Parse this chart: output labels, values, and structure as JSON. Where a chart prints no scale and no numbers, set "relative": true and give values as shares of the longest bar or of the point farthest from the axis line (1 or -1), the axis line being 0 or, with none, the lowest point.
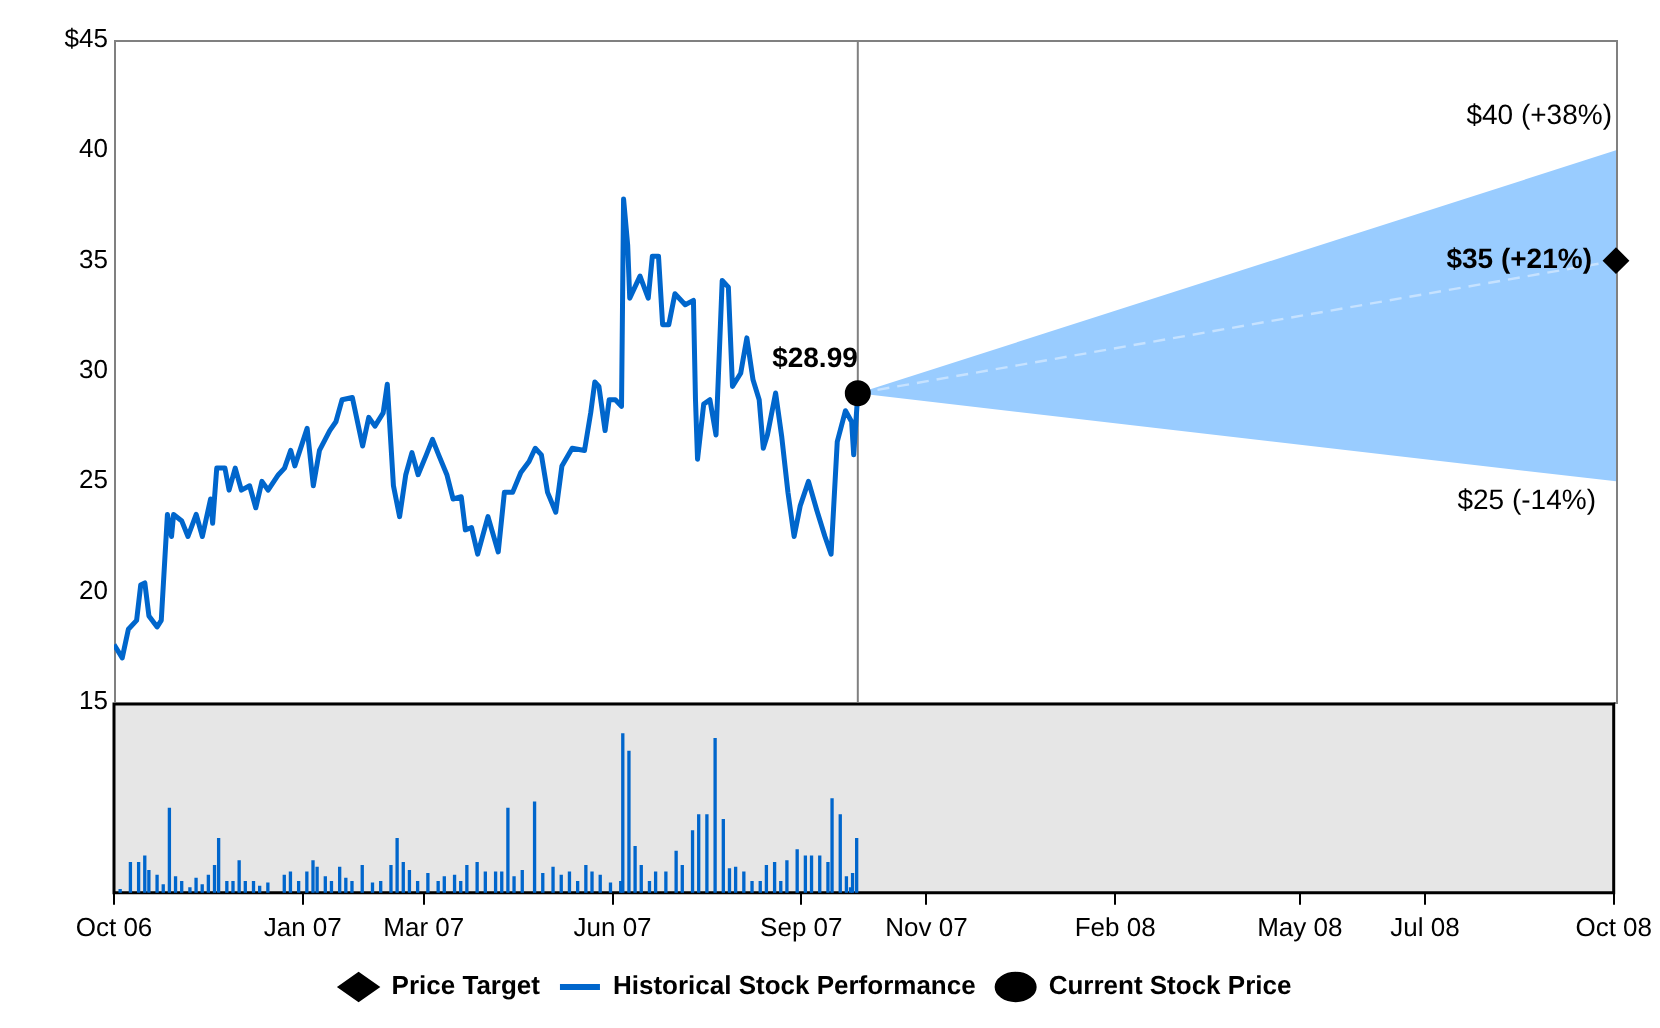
{
  "chart_data": [
    {
      "type": "line",
      "ylim": [
        15,
        45
      ],
      "yticks": [
        15,
        20,
        25,
        30,
        35,
        40,
        {
          "value": 45,
          "label": "$45"
        }
      ],
      "xlim": [
        "2006-10-01",
        "2008-10-01"
      ],
      "tick_labels": "y",
      "grid": false,
      "legend": "bottom",
      "series": [
        {
          "name": "Price Target",
          "type": "scatter",
          "color": "#000000",
          "marker": "diamond",
          "x": [
            "2008-10-01"
          ],
          "values": [
            35
          ]
        },
        {
          "name": "Historical Stock Performance",
          "type": "line",
          "color": "#0066cc",
          "marker": "none",
          "x": [
            "2006-10-01",
            "2006-10-05",
            "2006-10-08",
            "2006-10-12",
            "2006-10-14",
            "2006-10-16",
            "2006-10-18",
            "2006-10-22",
            "2006-10-24",
            "2006-10-27",
            "2006-10-29",
            "2006-10-30",
            "2006-11-03",
            "2006-11-06",
            "2006-11-10",
            "2006-11-13",
            "2006-11-17",
            "2006-11-18",
            "2006-11-20",
            "2006-11-24",
            "2006-11-26",
            "2006-11-29",
            "2006-12-02",
            "2006-12-06",
            "2006-12-09",
            "2006-12-12",
            "2006-12-15",
            "2006-12-20",
            "2006-12-23",
            "2006-12-26",
            "2006-12-28",
            "2007-01-03",
            "2007-01-06",
            "2007-01-09",
            "2007-01-14",
            "2007-01-17",
            "2007-01-20",
            "2007-01-25",
            "2007-01-30",
            "2007-02-02",
            "2007-02-05",
            "2007-02-09",
            "2007-02-11",
            "2007-02-14",
            "2007-02-17",
            "2007-02-20",
            "2007-02-23",
            "2007-02-26",
            "2007-03-02",
            "2007-03-05",
            "2007-03-08",
            "2007-03-12",
            "2007-03-15",
            "2007-03-19",
            "2007-03-21",
            "2007-03-24",
            "2007-03-27",
            "2007-04-01",
            "2007-04-06",
            "2007-04-09",
            "2007-04-13",
            "2007-04-17",
            "2007-04-21",
            "2007-04-24",
            "2007-04-27",
            "2007-04-30",
            "2007-05-04",
            "2007-05-07",
            "2007-05-12",
            "2007-05-18",
            "2007-05-21",
            "2007-05-23",
            "2007-05-25",
            "2007-05-28",
            "2007-05-30",
            "2007-06-02",
            "2007-06-05",
            "2007-06-06",
            "2007-06-08",
            "2007-06-09",
            "2007-06-14",
            "2007-06-18",
            "2007-06-20",
            "2007-06-23",
            "2007-06-25",
            "2007-06-28",
            "2007-07-01",
            "2007-07-06",
            "2007-07-10",
            "2007-07-11",
            "2007-07-12",
            "2007-07-15",
            "2007-07-18",
            "2007-07-21",
            "2007-07-24",
            "2007-07-27",
            "2007-07-29",
            "2007-08-02",
            "2007-08-05",
            "2007-08-08",
            "2007-08-11",
            "2007-08-13",
            "2007-08-15",
            "2007-08-19",
            "2007-08-22",
            "2007-08-25",
            "2007-08-28",
            "2007-08-31",
            "2007-09-04",
            "2007-09-08",
            "2007-09-12",
            "2007-09-15",
            "2007-09-18",
            "2007-09-22",
            "2007-09-25",
            "2007-09-26",
            "2007-09-28"
          ],
          "values": [
            17.6,
            17.0,
            18.3,
            18.7,
            20.3,
            20.4,
            18.9,
            18.4,
            18.7,
            23.5,
            22.5,
            23.5,
            23.2,
            22.5,
            23.5,
            22.5,
            24.2,
            23.1,
            25.6,
            25.6,
            24.6,
            25.6,
            24.6,
            24.8,
            23.8,
            25.0,
            24.6,
            25.3,
            25.6,
            26.4,
            25.7,
            27.4,
            24.8,
            26.4,
            27.3,
            27.7,
            28.7,
            28.8,
            26.6,
            27.9,
            27.5,
            28.1,
            29.4,
            24.8,
            23.4,
            25.3,
            26.3,
            25.3,
            26.2,
            26.9,
            26.2,
            25.3,
            24.2,
            24.3,
            22.8,
            22.9,
            21.7,
            23.4,
            21.8,
            24.5,
            24.5,
            25.4,
            25.9,
            26.5,
            26.2,
            24.5,
            23.6,
            25.7,
            26.5,
            26.4,
            28.1,
            29.5,
            29.3,
            27.3,
            28.7,
            28.7,
            28.4,
            37.8,
            35.7,
            33.3,
            34.3,
            33.3,
            35.2,
            35.2,
            32.1,
            32.1,
            33.5,
            33.0,
            33.2,
            28.7,
            26.0,
            28.5,
            28.7,
            27.1,
            34.1,
            33.8,
            29.3,
            29.9,
            31.5,
            29.6,
            28.7,
            26.5,
            27.1,
            29.0,
            27.0,
            24.5,
            22.5,
            23.9,
            25.0,
            23.7,
            22.5,
            21.7,
            26.8,
            28.2,
            27.7,
            26.2,
            28.99
          ]
        },
        {
          "name": "Current Stock Price",
          "type": "scatter",
          "color": "#000000",
          "marker": "circle",
          "x": [
            "2007-09-28"
          ],
          "values": [
            28.99
          ]
        },
        {
          "type": "line",
          "color": "#c6e2ff",
          "marker": "none",
          "line_style": "dashed",
          "x": [
            "2007-09-28",
            "2008-10-01"
          ],
          "values": [
            28.99,
            35
          ],
          "lower": [
            28.99,
            25
          ],
          "upper": [
            28.99,
            40
          ]
        }
      ],
      "ref_lines": [
        {
          "axis": "x",
          "value": "2007-09-28",
          "color": "#808080"
        }
      ],
      "annotations": [
        {
          "text": "$28.99",
          "x": "2007-09-28",
          "y": 28.99
        },
        {
          "text": "$40 (+38%)",
          "x": "2008-10-01",
          "y": 40
        },
        {
          "text": "$35 (+21%)",
          "x": "2008-10-01",
          "y": 35
        },
        {
          "text": "$25 (-14%)",
          "x": "2008-10-01",
          "y": 25
        }
      ]
    },
    {
      "type": "bar",
      "relative": true,
      "color": "#0066cc",
      "tick_labels": "x",
      "grid": false,
      "xlim": [
        "2006-10-01",
        "2008-10-01"
      ],
      "xticks": [
        {
          "value": "2006-10",
          "label": "Oct 06"
        },
        {
          "value": "2007-01",
          "label": "Jan 07"
        },
        {
          "value": "2007-03",
          "label": "Mar 07"
        },
        {
          "value": "2007-06",
          "label": "Jun 07"
        },
        {
          "value": "2007-09",
          "label": "Sep 07"
        },
        {
          "value": "2007-11",
          "label": "Nov 07"
        },
        {
          "value": "2008-02",
          "label": "Feb 08"
        },
        {
          "value": "2008-05",
          "label": "May 08"
        },
        {
          "value": "2008-07",
          "label": "Jul 08"
        },
        {
          "value": "2008-10",
          "label": "Oct 08"
        }
      ],
      "x": [
        "2006-10-04",
        "2006-10-09",
        "2006-10-13",
        "2006-10-16",
        "2006-10-18",
        "2006-10-22",
        "2006-10-25",
        "2006-10-28",
        "2006-10-31",
        "2006-11-03",
        "2006-11-07",
        "2006-11-10",
        "2006-11-13",
        "2006-11-16",
        "2006-11-19",
        "2006-11-21",
        "2006-11-25",
        "2006-11-28",
        "2006-12-01",
        "2006-12-04",
        "2006-12-08",
        "2006-12-11",
        "2006-12-15",
        "2006-12-23",
        "2006-12-26",
        "2006-12-30",
        "2007-01-03",
        "2007-01-06",
        "2007-01-08",
        "2007-01-12",
        "2007-01-15",
        "2007-01-19",
        "2007-01-22",
        "2007-01-25",
        "2007-01-30",
        "2007-02-04",
        "2007-02-08",
        "2007-02-13",
        "2007-02-16",
        "2007-02-19",
        "2007-02-22",
        "2007-02-26",
        "2007-03-03",
        "2007-03-08",
        "2007-03-11",
        "2007-03-16",
        "2007-03-19",
        "2007-03-22",
        "2007-03-27",
        "2007-03-31",
        "2007-04-05",
        "2007-04-08",
        "2007-04-11",
        "2007-04-14",
        "2007-04-18",
        "2007-04-24",
        "2007-04-28",
        "2007-05-03",
        "2007-05-07",
        "2007-05-11",
        "2007-05-15",
        "2007-05-19",
        "2007-05-22",
        "2007-05-26",
        "2007-05-31",
        "2007-06-05",
        "2007-06-06",
        "2007-06-09",
        "2007-06-12",
        "2007-06-15",
        "2007-06-19",
        "2007-06-22",
        "2007-06-27",
        "2007-07-02",
        "2007-07-05",
        "2007-07-10",
        "2007-07-13",
        "2007-07-17",
        "2007-07-21",
        "2007-07-25",
        "2007-07-28",
        "2007-07-31",
        "2007-08-04",
        "2007-08-08",
        "2007-08-12",
        "2007-08-15",
        "2007-08-19",
        "2007-08-22",
        "2007-08-25",
        "2007-08-30",
        "2007-09-03",
        "2007-09-06",
        "2007-09-10",
        "2007-09-14",
        "2007-09-16",
        "2007-09-20",
        "2007-09-23",
        "2007-09-25",
        "2007-09-26",
        "2007-09-28"
      ],
      "values": [
        0.02,
        0.19,
        0.19,
        0.23,
        0.14,
        0.11,
        0.05,
        0.53,
        0.1,
        0.07,
        0.03,
        0.09,
        0.05,
        0.11,
        0.17,
        0.34,
        0.07,
        0.07,
        0.2,
        0.07,
        0.07,
        0.04,
        0.06,
        0.11,
        0.13,
        0.07,
        0.13,
        0.2,
        0.16,
        0.1,
        0.07,
        0.16,
        0.09,
        0.07,
        0.17,
        0.06,
        0.07,
        0.17,
        0.34,
        0.19,
        0.14,
        0.07,
        0.12,
        0.07,
        0.1,
        0.11,
        0.07,
        0.17,
        0.19,
        0.13,
        0.13,
        0.13,
        0.53,
        0.1,
        0.14,
        0.57,
        0.12,
        0.16,
        0.11,
        0.13,
        0.07,
        0.17,
        0.13,
        0.11,
        0.06,
        0.07,
        1.0,
        0.89,
        0.29,
        0.17,
        0.07,
        0.13,
        0.13,
        0.26,
        0.17,
        0.39,
        0.49,
        0.49,
        0.97,
        0.46,
        0.15,
        0.16,
        0.13,
        0.07,
        0.07,
        0.17,
        0.19,
        0.07,
        0.2,
        0.27,
        0.23,
        0.23,
        0.23,
        0.19,
        0.59,
        0.49,
        0.1,
        0.03,
        0.12,
        0.34
      ]
    }
  ]
}
